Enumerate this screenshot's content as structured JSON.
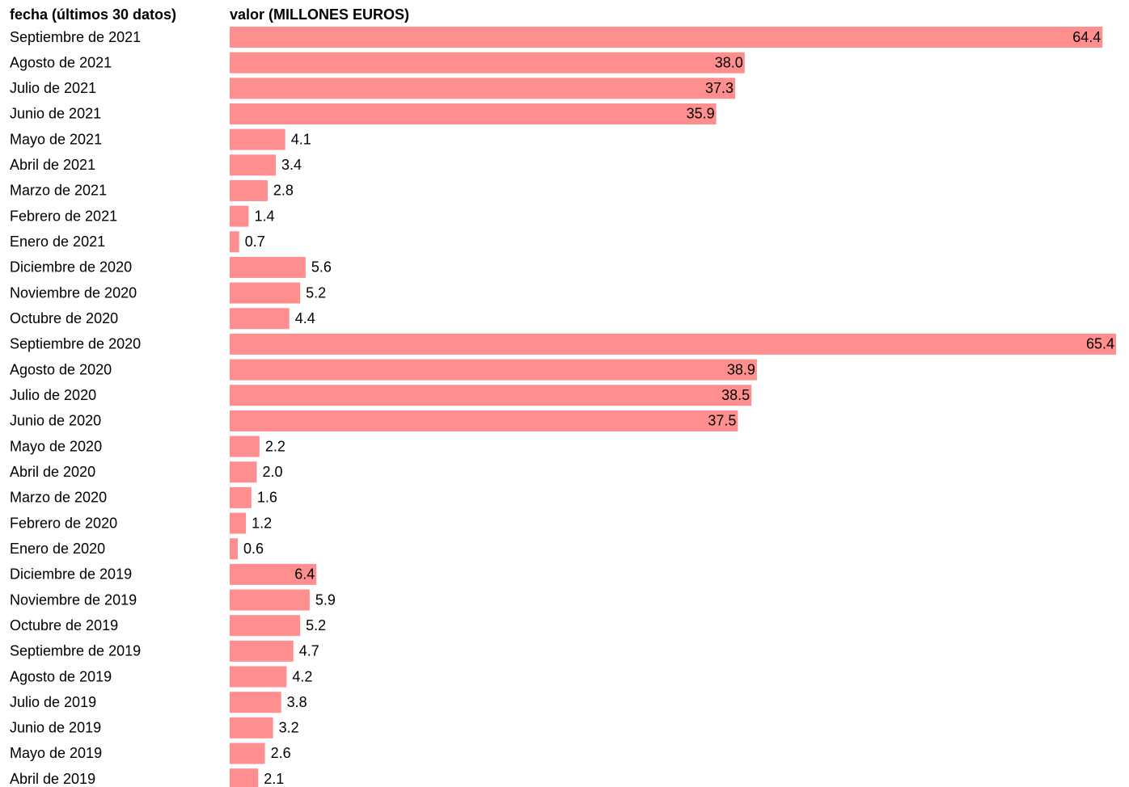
{
  "chart_data": {
    "type": "bar",
    "orientation": "horizontal",
    "category_header": "fecha (últimos 30 datos)",
    "value_header": "valor (MILLONES EUROS)",
    "color": "#ff8f8f",
    "categories": [
      "Septiembre de 2021",
      "Agosto de 2021",
      "Julio de 2021",
      "Junio de 2021",
      "Mayo de 2021",
      "Abril de 2021",
      "Marzo de 2021",
      "Febrero de 2021",
      "Enero de 2021",
      "Diciembre de 2020",
      "Noviembre de 2020",
      "Octubre de 2020",
      "Septiembre de 2020",
      "Agosto de 2020",
      "Julio de 2020",
      "Junio de 2020",
      "Mayo de 2020",
      "Abril de 2020",
      "Marzo de 2020",
      "Febrero de 2020",
      "Enero de 2020",
      "Diciembre de 2019",
      "Noviembre de 2019",
      "Octubre de 2019",
      "Septiembre de 2019",
      "Agosto de 2019",
      "Julio de 2019",
      "Junio de 2019",
      "Mayo de 2019",
      "Abril de 2019"
    ],
    "values": [
      64.4,
      38.0,
      37.3,
      35.9,
      4.1,
      3.4,
      2.8,
      1.4,
      0.7,
      5.6,
      5.2,
      4.4,
      65.4,
      38.9,
      38.5,
      37.5,
      2.2,
      2.0,
      1.6,
      1.2,
      0.6,
      6.4,
      5.9,
      5.2,
      4.7,
      4.2,
      3.8,
      3.2,
      2.6,
      2.1
    ],
    "value_labels": [
      "64.4",
      "38.0",
      "37.3",
      "35.9",
      "4.1",
      "3.4",
      "2.8",
      "1.4",
      "0.7",
      "5.6",
      "5.2",
      "4.4",
      "65.4",
      "38.9",
      "38.5",
      "37.5",
      "2.2",
      "2.0",
      "1.6",
      "1.2",
      "0.6",
      "6.4",
      "5.9",
      "5.2",
      "4.7",
      "4.2",
      "3.8",
      "3.2",
      "2.6",
      "2.1"
    ]
  }
}
